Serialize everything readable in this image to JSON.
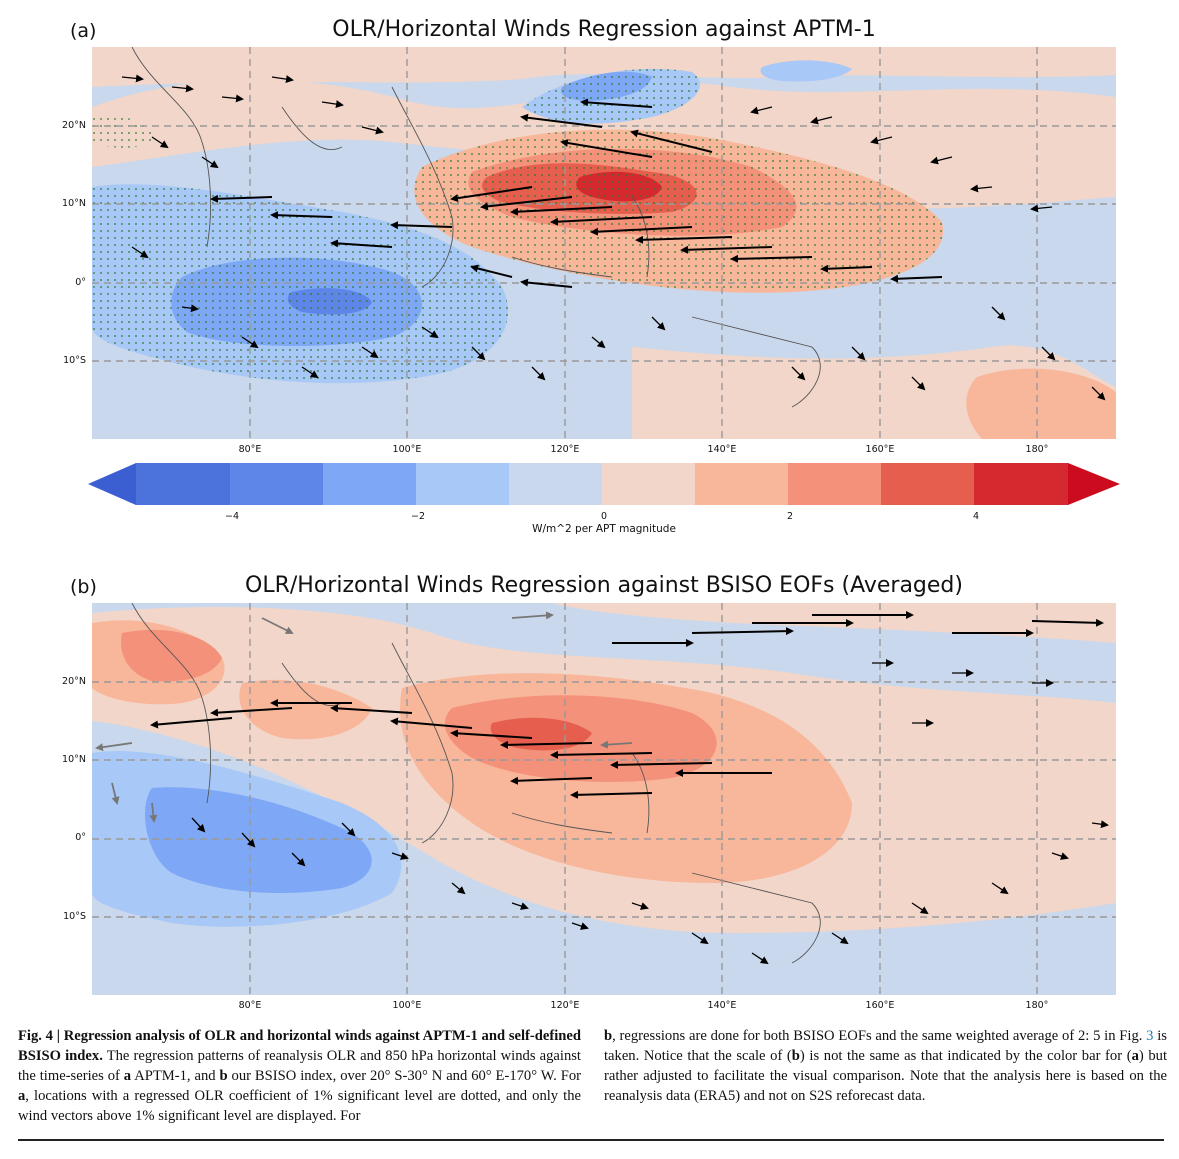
{
  "panel_a": {
    "label": "(a)",
    "title": "OLR/Horizontal Winds Regression against APTM-1"
  },
  "panel_b": {
    "label": "(b)",
    "title": "OLR/Horizontal Winds Regression against BSISO EOFs (Averaged)"
  },
  "axes": {
    "lat_ticks": [
      "20°N",
      "10°N",
      "0°",
      "10°S"
    ],
    "lon_ticks": [
      "80°E",
      "100°E",
      "120°E",
      "140°E",
      "160°E",
      "180°"
    ]
  },
  "colorbar": {
    "tick_labels": [
      "−4",
      "−2",
      "0",
      "2",
      "4"
    ],
    "label": "W/m^2 per APT magnitude",
    "colors": [
      "#3b5fd0",
      "#5d86e8",
      "#7ea8f5",
      "#a8c8f8",
      "#c9d8ec",
      "#f2d6c9",
      "#f8b79b",
      "#f4917a",
      "#e65e4e",
      "#d42a2f",
      "#cc0b1f"
    ]
  },
  "caption": {
    "fig_label": "Fig. 4 | Regression analysis of OLR and horizontal winds against APTM-1 and self-defined BSISO index.",
    "text_1": " The regression patterns of reanalysis OLR and 850 hPa horizontal winds against the time-series of ",
    "bold_a": "a",
    "text_2": " APTM-1, and ",
    "bold_b": "b",
    "text_3": " our BSISO index, over 20° S-30° N and 60° E-170° W. For ",
    "bold_a2": "a",
    "text_4": ", locations with a regressed OLR coefficient of 1% significant level are dotted, and only the wind vectors above 1% significant level are displayed. For ",
    "bold_b2": "b",
    "text_5": ", regressions are done for both BSISO EOFs and the same weighted average of 2: 5 in Fig. ",
    "fig_ref": "3",
    "text_6": " is taken. Notice that the scale of (",
    "bold_b3": "b",
    "text_7": ") is not the same as that indicated by the color bar for (",
    "bold_a3": "a",
    "text_8": ") but rather adjusted to facilitate the visual comparison. Note that the analysis here is based on the reanalysis data (ERA5) and not on S2S reforecast data."
  }
}
